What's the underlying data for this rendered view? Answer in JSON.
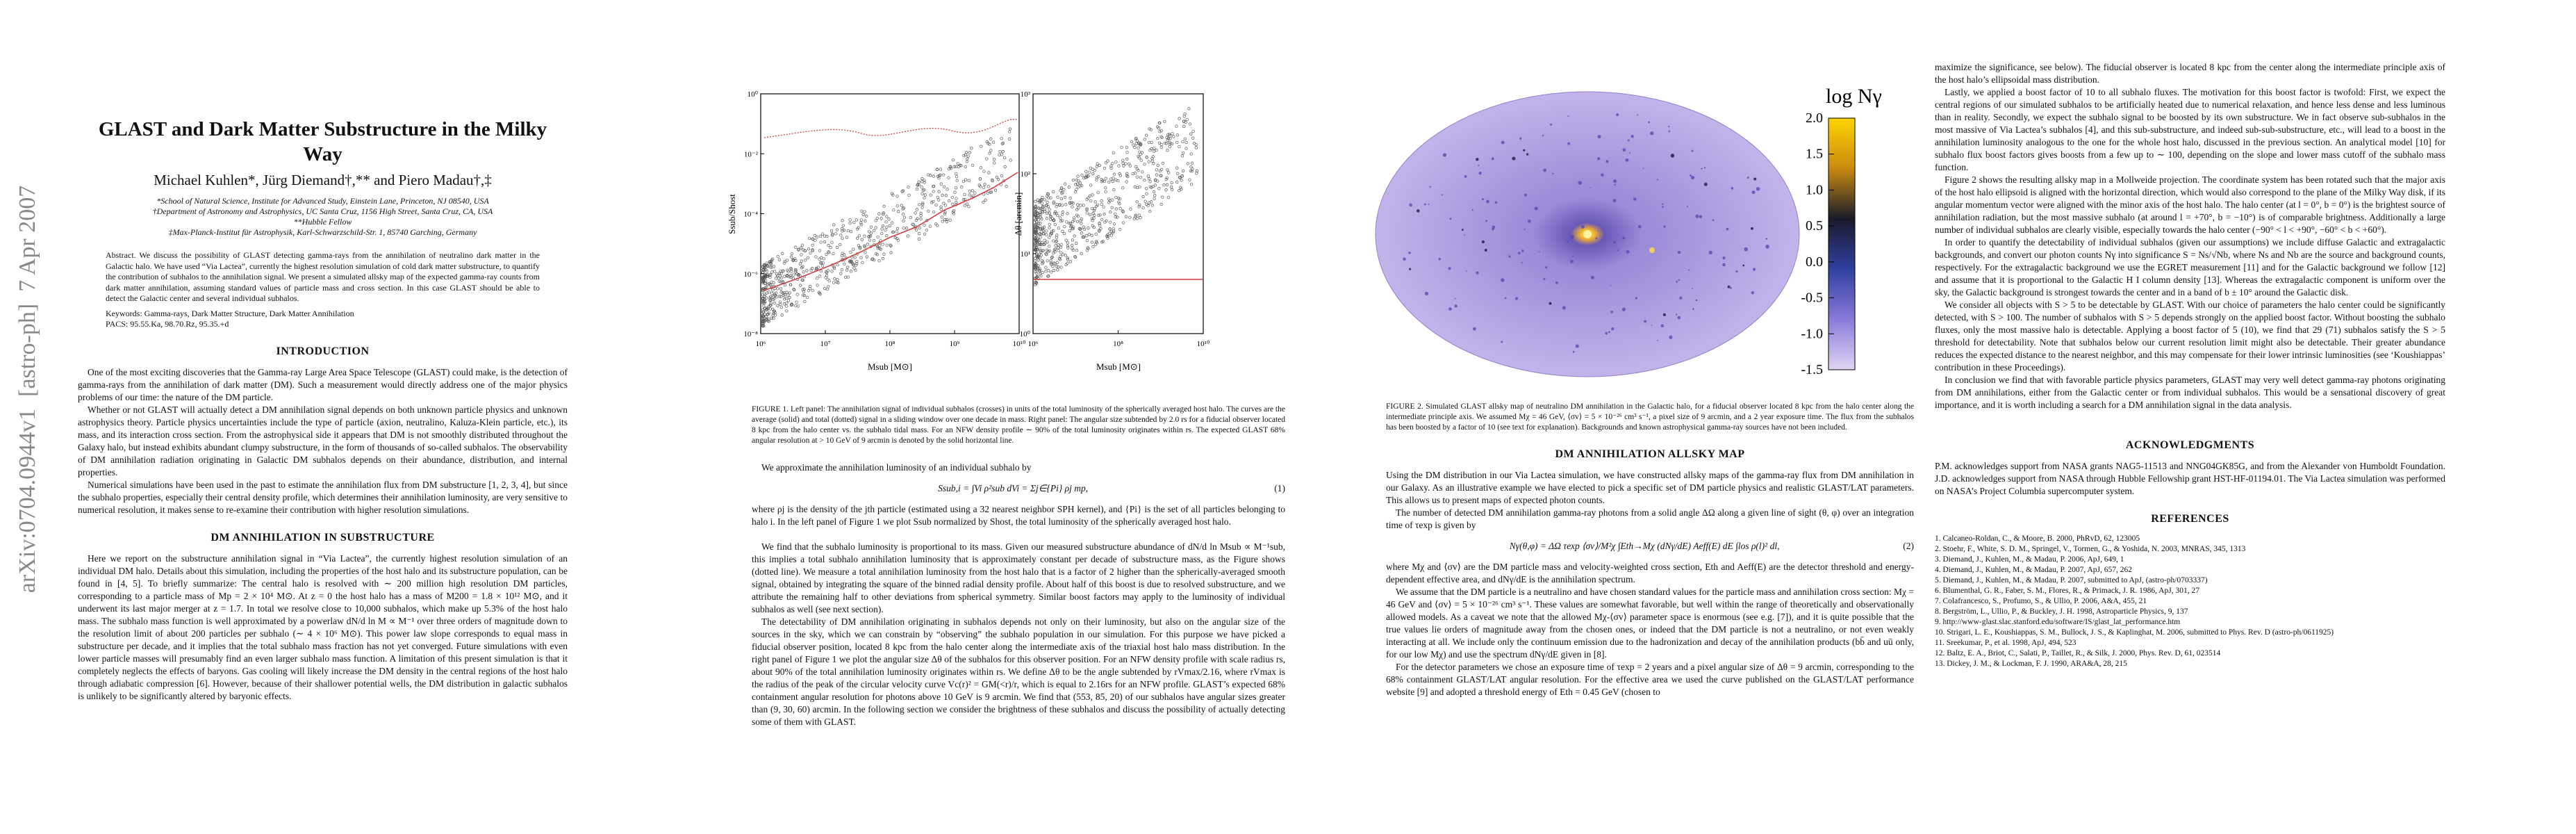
{
  "sidebar": "arXiv:0704.0944v1  [astro-ph]  7 Apr 2007",
  "page1": {
    "title": "GLAST and Dark Matter Substructure in the Milky Way",
    "authors": "Michael Kuhlen*, Jürg Diemand†,** and Piero Madau†,‡",
    "affiliations": [
      "*School of Natural Science, Institute for Advanced Study, Einstein Lane, Princeton, NJ 08540, USA",
      "†Department of Astronomy and Astrophysics, UC Santa Cruz, 1156 High Street, Santa Cruz, CA, USA",
      "**Hubble Fellow",
      "‡Max-Planck-Institut für Astrophysik, Karl-Schwarzschild-Str. 1, 85740 Garching, Germany"
    ],
    "abstract": "Abstract. We discuss the possibility of GLAST detecting gamma-rays from the annihilation of neutralino dark matter in the Galactic halo. We have used “Via Lactea”, currently the highest resolution simulation of cold dark matter substructure, to quantify the contribution of subhalos to the annihilation signal. We present a simulated allsky map of the expected gamma-ray counts from dark matter annihilation, assuming standard values of particle mass and cross section. In this case GLAST should be able to detect the Galactic center and several individual subhalos.",
    "keywords": "Keywords: Gamma-rays, Dark Matter Structure, Dark Matter Annihilation",
    "pacs": "PACS: 95.55.Ka, 98.70.Rz, 95.35.+d",
    "heading1": "INTRODUCTION",
    "intro": [
      "One of the most exciting discoveries that the Gamma-ray Large Area Space Telescope (GLAST) could make, is the detection of gamma-rays from the annihilation of dark matter (DM). Such a measurement would directly address one of the major physics problems of our time: the nature of the DM particle.",
      "Whether or not GLAST will actually detect a DM annihilation signal depends on both unknown particle physics and unknown astrophysics theory. Particle physics uncertainties include the type of particle (axion, neutralino, Kaluza-Klein particle, etc.), its mass, and its interaction cross section. From the astrophysical side it appears that DM is not smoothly distributed throughout the Galaxy halo, but instead exhibits abundant clumpy substructure, in the form of thousands of so-called subhalos. The observability of DM annihilation radiation originating in Galactic DM subhalos depends on their abundance, distribution, and internal properties.",
      "Numerical simulations have been used in the past to estimate the annihilation flux from DM substructure [1, 2, 3, 4], but since the subhalo properties, especially their central density profile, which determines their annihilation luminosity, are very sensitive to numerical resolution, it makes sense to re-examine their contribution with higher resolution simulations."
    ],
    "heading2": "DM ANNIHILATION IN SUBSTRUCTURE",
    "substructure": [
      "Here we report on the substructure annihilation signal in “Via Lactea”, the currently highest resolution simulation of an individual DM halo. Details about this simulation, including the properties of the host halo and its substructure population, can be found in [4, 5]. To briefly summarize: The central halo is resolved with ∼ 200 million high resolution DM particles, corresponding to a particle mass of Mp = 2 × 10⁴ M⊙. At z = 0 the host halo has a mass of M200 = 1.8 × 10¹² M⊙, and it underwent its last major merger at z = 1.7. In total we resolve close to 10,000 subhalos, which make up 5.3% of the host halo mass. The subhalo mass function is well approximated by a powerlaw dN/d ln M ∝ M⁻¹ over three orders of magnitude down to the resolution limit of about 200 particles per subhalo (∼ 4 × 10⁶ M⊙). This power law slope corresponds to equal mass in substructure per decade, and it implies that the total subhalo mass fraction has not yet converged. Future simulations with even lower particle masses will presumably find an even larger subhalo mass function. A limitation of this present simulation is that it completely neglects the effects of baryons. Gas cooling will likely increase the DM density in the central regions of the host halo through adiabatic compression [6]. However, because of their shallower potential wells, the DM distribution in galactic subhalos is unlikely to be significantly altered by baryonic effects."
    ]
  },
  "page2": {
    "figure1": {
      "left": {
        "y_label": "Ssub/Shost",
        "x_label": "Msub [M⊙]",
        "yticks": [
          "10⁰",
          "10⁻²",
          "10⁻⁴",
          "10⁻⁶",
          "10⁻⁸"
        ],
        "xticks": [
          "10⁶",
          "10⁷",
          "10⁸",
          "10⁹",
          "10¹⁰"
        ]
      },
      "right": {
        "y_label": "Δθ [arcmin]",
        "x_label": "Msub [M⊙]",
        "yticks": [
          "10³",
          "10²",
          "10¹",
          "10⁰"
        ],
        "xticks": [
          "10⁶",
          "10⁸",
          "10¹⁰"
        ]
      },
      "caption": "FIGURE 1. Left panel: The annihilation signal of individual subhalos (crosses) in units of the total luminosity of the spherically averaged host halo. The curves are the average (solid) and total (dotted) signal in a sliding window over one decade in mass. Right panel: The angular size subtended by 2.0 rs for a fiducial observer located 8 kpc from the halo center vs. the subhalo tidal mass. For an NFW density profile ∼ 90% of the total luminosity originates within rs. The expected GLAST 68% angular resolution at > 10 GeV of 9 arcmin is denoted by the solid horizontal line."
    },
    "intro_eq": "We approximate the annihilation luminosity of an individual subhalo by",
    "equation1": "Ssub,i = ∫Vi ρ²sub dVi = Σj∈{Pi} ρj mp,",
    "equation1_number": "(1)",
    "paragraphs": [
      "where ρj is the density of the jth particle (estimated using a 32 nearest neighbor SPH kernel), and {Pi} is the set of all particles belonging to halo i. In the left panel of Figure 1 we plot Ssub normalized by Shost, the total luminosity of the spherically averaged host halo.",
      "We find that the subhalo luminosity is proportional to its mass. Given our measured substructure abundance of dN/d ln Msub ∝ M⁻¹sub, this implies a total subhalo annihilation luminosity that is approximately constant per decade of substructure mass, as the Figure shows (dotted line). We measure a total annihilation luminosity from the host halo that is a factor of 2 higher than the spherically-averaged smooth signal, obtained by integrating the square of the binned radial density profile. About half of this boost is due to resolved substructure, and we attribute the remaining half to other deviations from spherical symmetry. Similar boost factors may apply to the luminosity of individual subhalos as well (see next section).",
      "The detectability of DM annihilation originating in subhalos depends not only on their luminosity, but also on the angular size of the sources in the sky, which we can constrain by “observing” the subhalo population in our simulation. For this purpose we have picked a fiducial observer position, located 8 kpc from the halo center along the intermediate axis of the triaxial host halo mass distribution. In the right panel of Figure 1 we plot the angular size Δθ of the subhalos for this observer position. For an NFW density profile with scale radius rs, about 90% of the total annihilation luminosity originates within rs. We define Δθ to be the angle subtended by rVmax/2.16, where rVmax is the radius of the peak of the circular velocity curve Vc(r)² = GM(<r)/r, which is equal to 2.16rs for an NFW profile. GLAST’s expected 68% containment angular resolution for photons above 10 GeV is 9 arcmin. We find that (553, 85, 20) of our subhalos have angular sizes greater than (9, 30, 60) arcmin. In the following section we consider the brightness of these subhalos and discuss the possibility of actually detecting some of them with GLAST."
    ]
  },
  "page3": {
    "colorbar_label": "log Nγ",
    "colorbar_ticks": [
      "2.0",
      "1.5",
      "1.0",
      "0.5",
      "0.0",
      "-0.5",
      "-1.0",
      "-1.5"
    ],
    "caption": "FIGURE 2. Simulated GLAST allsky map of neutralino DM annihilation in the Galactic halo, for a fiducial observer located 8 kpc from the halo center along the intermediate principle axis. We assumed Mχ = 46 GeV, ⟨σv⟩ = 5 × 10⁻²⁶ cm³ s⁻¹, a pixel size of 9 arcmin, and a 2 year exposure time. The flux from the subhalos has been boosted by a factor of 10 (see text for explanation). Backgrounds and known astrophysical gamma-ray sources have not been included.",
    "heading": "DM ANNIHILATION ALLSKY MAP",
    "paragraphs_a": [
      "Using the DM distribution in our Via Lactea simulation, we have constructed allsky maps of the gamma-ray flux from DM annihilation in our Galaxy. As an illustrative example we have elected to pick a specific set of DM particle physics and realistic GLAST/LAT parameters. This allows us to present maps of expected photon counts.",
      "The number of detected DM annihilation gamma-ray photons from a solid angle ΔΩ along a given line of sight (θ, φ) over an integration time of τexp is given by"
    ],
    "equation2": "Nγ(θ,φ) = ΔΩ τexp ⟨σv⟩/M²χ ∫Eth→Mχ (dNγ/dE) Aeff(E) dE ∫los ρ(l)² dl,",
    "equation2_number": "(2)",
    "paragraphs_b": [
      "where Mχ and ⟨σv⟩ are the DM particle mass and velocity-weighted cross section, Eth and Aeff(E) are the detector threshold and energy-dependent effective area, and dNγ/dE is the annihilation spectrum.",
      "We assume that the DM particle is a neutralino and have chosen standard values for the particle mass and annihilation cross section: Mχ = 46 GeV and ⟨σv⟩ = 5 × 10⁻²⁶ cm³ s⁻¹. These values are somewhat favorable, but well within the range of theoretically and observationally allowed models. As a caveat we note that the allowed Mχ-⟨σv⟩ parameter space is enormous (see e.g. [7]), and it is quite possible that the true values lie orders of magnitude away from the chosen ones, or indeed that the DM particle is not a neutralino, or not even weakly interacting at all. We include only the continuum emission due to the hadronization and decay of the annihilation products (bb̄ and uū only, for our low Mχ) and use the spectrum dNγ/dE given in [8].",
      "For the detector parameters we chose an exposure time of τexp = 2 years and a pixel angular size of Δθ = 9 arcmin, corresponding to the 68% containment GLAST/LAT angular resolution. For the effective area we used the curve published on the GLAST/LAT performance website [9] and adopted a threshold energy of Eth = 0.45 GeV (chosen to"
    ]
  },
  "page4": {
    "paragraphs": [
      "maximize the significance, see below). The fiducial observer is located 8 kpc from the center along the intermediate principle axis of the host halo’s ellipsoidal mass distribution.",
      "Lastly, we applied a boost factor of 10 to all subhalo fluxes. The motivation for this boost factor is twofold: First, we expect the central regions of our simulated subhalos to be artificially heated due to numerical relaxation, and hence less dense and less luminous than in reality. Secondly, we expect the subhalo signal to be boosted by its own substructure. We in fact observe sub-subhalos in the most massive of Via Lactea’s subhalos [4], and this sub-substructure, and indeed sub-sub-substructure, etc., will lead to a boost in the annihilation luminosity analogous to the one for the whole host halo, discussed in the previous section. An analytical model [10] for subhalo flux boost factors gives boosts from a few up to ∼ 100, depending on the slope and lower mass cutoff of the subhalo mass function.",
      "Figure 2 shows the resulting allsky map in a Mollweide projection. The coordinate system has been rotated such that the major axis of the host halo ellipsoid is aligned with the horizontal direction, which would also correspond to the plane of the Milky Way disk, if its angular momentum vector were aligned with the minor axis of the host halo. The halo center (at l = 0°, b = 0°) is the brightest source of annihilation radiation, but the most massive subhalo (at around l = +70°, b = −10°) is of comparable brightness. Additionally a large number of individual subhalos are clearly visible, especially towards the halo center (−90° < l < +90°, −60° < b < +60°).",
      "In order to quantify the detectability of individual subhalos (given our assumptions) we include diffuse Galactic and extragalactic backgrounds, and convert our photon counts Nγ into significance S = Ns/√Nb, where Ns and Nb are the source and background counts, respectively. For the extragalactic background we use the EGRET measurement [11] and for the Galactic background we follow [12] and assume that it is proportional to the Galactic H I column density [13]. Whereas the extragalactic component is uniform over the sky, the Galactic background is strongest towards the center and in a band of b ± 10° around the Galactic disk.",
      "We consider all objects with S > 5 to be detectable by GLAST. With our choice of parameters the halo center could be significantly detected, with S > 100. The number of subhalos with S > 5 depends strongly on the applied boost factor. Without boosting the subhalo fluxes, only the most massive halo is detectable. Applying a boost factor of 5 (10), we find that 29 (71) subhalos satisfy the S > 5 threshold for detectability. Note that subhalos below our current resolution limit might also be detectable. Their greater abundance reduces the expected distance to the nearest neighbor, and this may compensate for their lower intrinsic luminosities (see ‘Koushiappas’ contribution in these Proceedings).",
      "In conclusion we find that with favorable particle physics parameters, GLAST may very well detect gamma-ray photons originating from DM annihilations, either from the Galactic center or from individual subhalos. This would be a sensational discovery of great importance, and it is worth including a search for a DM annihilation signal in the data analysis."
    ],
    "ack_heading": "ACKNOWLEDGMENTS",
    "ack": "P.M. acknowledges support from NASA grants NAG5-11513 and NNG04GK85G, and from the Alexander von Humboldt Foundation. J.D. acknowledges support from NASA through Hubble Fellowship grant HST-HF-01194.01. The Via Lactea simulation was performed on NASA’s Project Columbia supercomputer system.",
    "ref_heading": "REFERENCES",
    "references": [
      "1.  Calcaneo-Roldan, C., & Moore, B. 2000, PhRvD, 62, 123005",
      "2.  Stoehr, F., White, S. D. M., Springel, V., Tormen, G., & Yoshida, N. 2003, MNRAS, 345, 1313",
      "3.  Diemand, J., Kuhlen, M., & Madau, P. 2006, ApJ, 649, 1",
      "4.  Diemand, J., Kuhlen, M., & Madau, P. 2007, ApJ, 657, 262",
      "5.  Diemand, J., Kuhlen, M., & Madau, P. 2007, submitted to ApJ, (astro-ph/0703337)",
      "6.  Blumenthal, G. R., Faber, S. M., Flores, R., & Primack, J. R. 1986, ApJ, 301, 27",
      "7.  Colafrancesco, S., Profumo, S., & Ullio, P. 2006, A&A, 455, 21",
      "8.  Bergström, L., Ullio, P., & Buckley, J. H. 1998, Astroparticle Physics, 9, 137",
      "9.  http://www-glast.slac.stanford.edu/software/IS/glast_lat_performance.htm",
      "10. Strigari, L. E., Koushiappas, S. M., Bullock, J. S., & Kaplinghat, M. 2006, submitted to Phys. Rev. D (astro-ph/0611925)",
      "11. Sreekumar, P., et al. 1998, ApJ, 494, 523",
      "12. Baltz, E. A., Briot, C., Salati, P., Taillet, R., & Silk, J. 2000, Phys. Rev. D, 61, 023514",
      "13. Dickey, J. M., & Lockman, F. J. 1990, ARA&A, 28, 215"
    ]
  }
}
